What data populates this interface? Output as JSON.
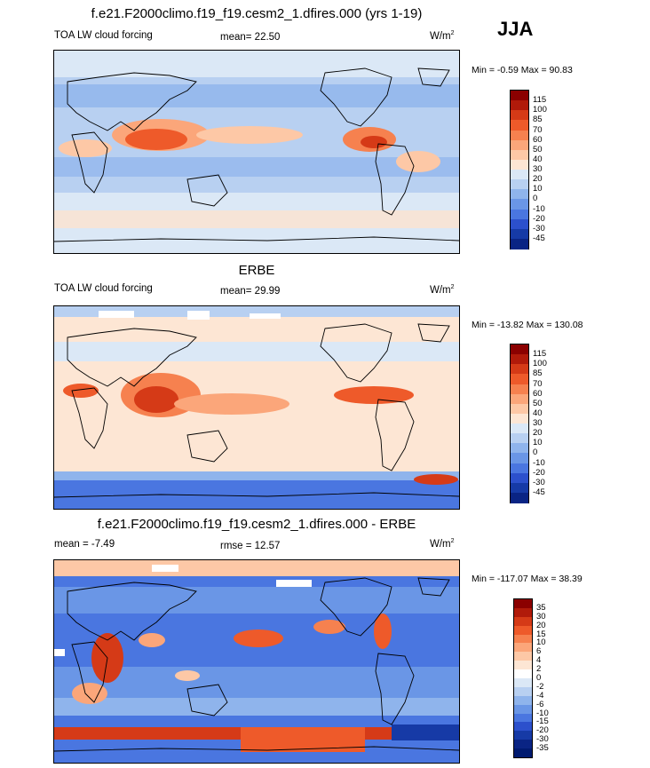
{
  "season": "JJA",
  "panels": [
    {
      "id": "model",
      "title": "f.e21.F2000climo.f19_f19.cesm2_1.dfires.000 (yrs 1-19)",
      "left_label": "TOA LW cloud forcing",
      "mid_label": "mean=  22.50",
      "units": "W/m",
      "units_sup": "2",
      "minmax": "Min =  -0.59 Max =  90.83",
      "colorbar": {
        "labels": [
          "115",
          "100",
          "85",
          "70",
          "60",
          "50",
          "40",
          "30",
          "20",
          "10",
          "0",
          "-10",
          "-20",
          "-30",
          "-45"
        ],
        "colors": [
          "#8b0000",
          "#b11a0a",
          "#d53a17",
          "#ee5a2a",
          "#f6814f",
          "#fba67a",
          "#fdc8a6",
          "#fde6d4",
          "#dbe8f6",
          "#b8d0f1",
          "#8fb4ec",
          "#6a96e6",
          "#4a76e0",
          "#2c50cc",
          "#163aa6",
          "#0a2484"
        ]
      }
    },
    {
      "id": "obs",
      "title": "ERBE",
      "left_label": "TOA LW cloud forcing",
      "mid_label": "mean=  29.99",
      "units": "W/m",
      "units_sup": "2",
      "minmax": "Min = -13.82 Max = 130.08",
      "colorbar": {
        "labels": [
          "115",
          "100",
          "85",
          "70",
          "60",
          "50",
          "40",
          "30",
          "20",
          "10",
          "0",
          "-10",
          "-20",
          "-30",
          "-45"
        ],
        "colors": [
          "#8b0000",
          "#b11a0a",
          "#d53a17",
          "#ee5a2a",
          "#f6814f",
          "#fba67a",
          "#fdc8a6",
          "#fde6d4",
          "#dbe8f6",
          "#b8d0f1",
          "#8fb4ec",
          "#6a96e6",
          "#4a76e0",
          "#2c50cc",
          "#163aa6",
          "#0a2484"
        ]
      }
    },
    {
      "id": "diff",
      "title": "f.e21.F2000climo.f19_f19.cesm2_1.dfires.000 - ERBE",
      "left_label": "mean =  -7.49",
      "mid_label": "rmse =  12.57",
      "units": "W/m",
      "units_sup": "2",
      "minmax": "Min = -117.07 Max =  38.39",
      "colorbar": {
        "labels": [
          "35",
          "30",
          "20",
          "15",
          "10",
          "6",
          "4",
          "2",
          "0",
          "-2",
          "-4",
          "-6",
          "-10",
          "-15",
          "-20",
          "-30",
          "-35"
        ],
        "colors": [
          "#8b0000",
          "#b11a0a",
          "#d53a17",
          "#ee5a2a",
          "#f6814f",
          "#fba67a",
          "#fdc8a6",
          "#fde6d4",
          "#ffffff",
          "#dbe8f6",
          "#b8d0f1",
          "#8fb4ec",
          "#6a96e6",
          "#4a76e0",
          "#2c50cc",
          "#163aa6",
          "#0a2484",
          "#001a70"
        ]
      }
    }
  ]
}
